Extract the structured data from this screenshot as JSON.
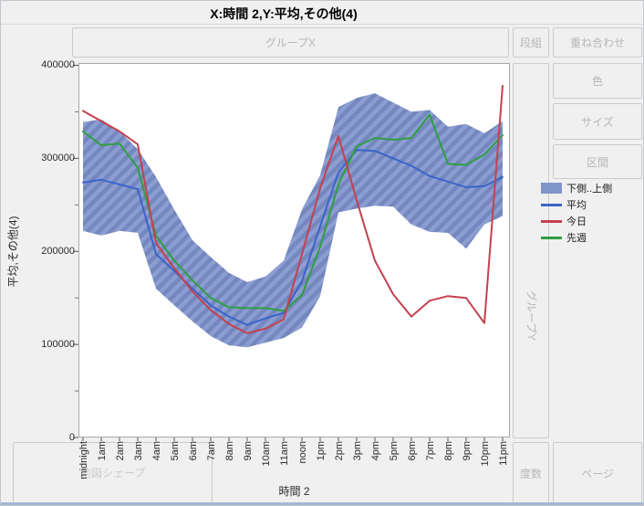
{
  "window": {
    "title": "X:時間 2,Y:平均,その他(4)"
  },
  "drop_zones": {
    "group_x": "グループX",
    "columns": "段組",
    "overlay": "重ね合わせ",
    "color": "色",
    "size": "サイズ",
    "interval": "区間",
    "group_y": "グループY",
    "frequency": "度数",
    "page": "ページ",
    "map_shape": "地図シェープ"
  },
  "legend": [
    {
      "label": "下側..上側",
      "type": "band",
      "color": "#8095c8"
    },
    {
      "label": "平均",
      "type": "line",
      "color": "#3b64c8"
    },
    {
      "label": "今日",
      "type": "line",
      "color": "#c4414e"
    },
    {
      "label": "先週",
      "type": "line",
      "color": "#2f9e42"
    }
  ],
  "chart_data": {
    "type": "line",
    "title": "X:時間 2,Y:平均,その他(4)",
    "xlabel": "時間 2",
    "ylabel": "平均,その他(4)",
    "ylim": [
      0,
      400000
    ],
    "y_ticks": [
      0,
      100000,
      200000,
      300000,
      400000
    ],
    "y_minor_step": 50000,
    "grid": false,
    "legend_position": "right",
    "categories": [
      "midnight",
      "1am",
      "2am",
      "3am",
      "4am",
      "5am",
      "6am",
      "7am",
      "8am",
      "9am",
      "10am",
      "11am",
      "noon",
      "1pm",
      "2pm",
      "3pm",
      "4pm",
      "5pm",
      "6pm",
      "7pm",
      "8pm",
      "9pm",
      "10pm",
      "11pm"
    ],
    "band": {
      "name": "下側..上側",
      "fill_light": "#8c9ed1",
      "fill_dark": "#7487be",
      "upper": [
        339000,
        342000,
        329000,
        310000,
        280000,
        245000,
        212000,
        194000,
        177000,
        167000,
        173000,
        190000,
        245000,
        282000,
        355000,
        365000,
        370000,
        360000,
        350000,
        352000,
        334000,
        337000,
        327000,
        340000
      ],
      "lower": [
        222000,
        217000,
        222000,
        220000,
        160000,
        142000,
        125000,
        109000,
        99000,
        97000,
        102000,
        107000,
        118000,
        152000,
        242000,
        246000,
        249000,
        248000,
        229000,
        221000,
        220000,
        203000,
        229000,
        238000
      ]
    },
    "series": [
      {
        "name": "平均",
        "color": "#3b64c8",
        "values": [
          274000,
          277000,
          272000,
          267000,
          197000,
          179000,
          160000,
          142000,
          130000,
          121000,
          128000,
          134000,
          168000,
          227000,
          285000,
          309000,
          308000,
          300000,
          292000,
          281000,
          275000,
          269000,
          270000,
          280000
        ]
      },
      {
        "name": "先週",
        "color": "#2f9e42",
        "values": [
          329000,
          314000,
          316000,
          290000,
          217000,
          190000,
          169000,
          150000,
          140000,
          139000,
          139000,
          136000,
          153000,
          205000,
          272000,
          313000,
          322000,
          320000,
          322000,
          347000,
          294000,
          293000,
          304000,
          325000
        ]
      },
      {
        "name": "今日",
        "color": "#c4414e",
        "values": [
          351000,
          340000,
          329000,
          315000,
          209000,
          182000,
          157000,
          137000,
          122000,
          112000,
          117000,
          127000,
          197000,
          268000,
          324000,
          255000,
          190000,
          154000,
          130000,
          147000,
          152000,
          150000,
          123000,
          378000
        ]
      }
    ]
  }
}
